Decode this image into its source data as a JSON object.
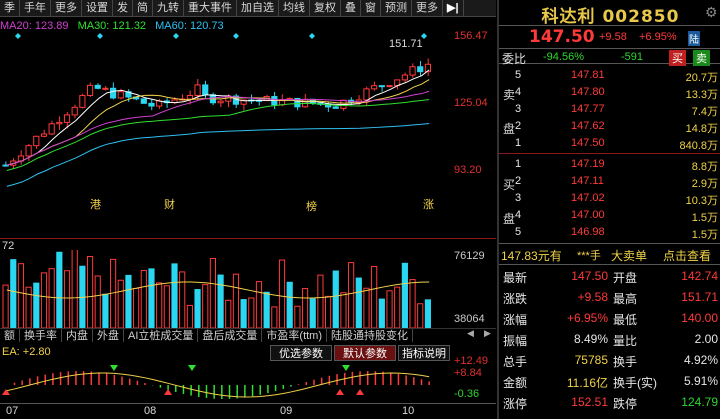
{
  "toolbar": {
    "items": [
      "季",
      "手年",
      "更多",
      "设置",
      "发",
      "简",
      "九转",
      "重大事件",
      "加自选",
      "均线",
      "复权",
      "叠",
      "窗",
      "预测",
      "更多"
    ],
    "arrow_label": "▶|"
  },
  "ma": {
    "ma20": "MA20: 123.89",
    "ma30": "MA30: 121.32",
    "ma60": "MA60: 120.73"
  },
  "price_axis": {
    "high_label": "151.71",
    "ticks": [
      "156.47",
      "125.04",
      "93.20"
    ]
  },
  "volume": {
    "label": "72",
    "ticks": [
      "76129",
      "38064"
    ]
  },
  "events": {
    "e1": "港",
    "e2": "财",
    "e3": "榜",
    "e4": "涨"
  },
  "tabs": [
    "额",
    "换手率",
    "内盘",
    "外盘",
    "AI立桩成交量",
    "盘后成交量",
    "市盈率(ttm)",
    "陆股通持股变化"
  ],
  "tab_arrow_left": "◀",
  "tab_arrow_right": "▶",
  "indicator": {
    "label": "EA: +2.80",
    "buttons": [
      "优选参数",
      "默认参数",
      "指标说明"
    ],
    "ticks": [
      "+12.49",
      "+8.84",
      "-0.36"
    ]
  },
  "x_axis": [
    "07",
    "08",
    "09",
    "10"
  ],
  "panel": {
    "title": "科达利 002850",
    "price": "147.50",
    "change": "+9.58",
    "change_pct": "+6.95%",
    "market_badge": "陆",
    "weibi_label": "委比",
    "weibi_value": "-94.56%",
    "weicha_value": "-591",
    "buy_btn": "买",
    "sell_btn": "卖",
    "sell_side_label": [
      "卖",
      "盘"
    ],
    "buy_side_label": [
      "买",
      "盘"
    ],
    "asks": [
      {
        "level": "5",
        "price": "147.81",
        "vol": "20.7万"
      },
      {
        "level": "4",
        "price": "147.80",
        "vol": "13.3万"
      },
      {
        "level": "3",
        "price": "147.77",
        "vol": "7.4万"
      },
      {
        "level": "2",
        "price": "147.62",
        "vol": "14.8万"
      },
      {
        "level": "1",
        "price": "147.50",
        "vol": "840.8万"
      }
    ],
    "bids": [
      {
        "level": "1",
        "price": "147.19",
        "vol": "8.8万"
      },
      {
        "level": "2",
        "price": "147.11",
        "vol": "2.9万"
      },
      {
        "level": "3",
        "price": "147.02",
        "vol": "10.3万"
      },
      {
        "level": "4",
        "price": "147.00",
        "vol": "1.5万"
      },
      {
        "level": "5",
        "price": "146.98",
        "vol": "1.5万"
      }
    ],
    "deal_amount": "147.83元有",
    "deal_stars": "***手",
    "big_order": "大卖单",
    "check_link": "点击查看",
    "stats": [
      {
        "l1": "最新",
        "v1": "147.50",
        "l2": "开盘",
        "v2": "142.74"
      },
      {
        "l1": "涨跌",
        "v1": "+9.58",
        "l2": "最高",
        "v2": "151.71"
      },
      {
        "l1": "涨幅",
        "v1": "+6.95%",
        "l2": "最低",
        "v2": "140.00"
      },
      {
        "l1": "振幅",
        "v1": "8.49%",
        "l2": "量比",
        "v2": "2.00"
      },
      {
        "l1": "总手",
        "v1": "75785",
        "l2": "换手",
        "v2": "4.92%"
      },
      {
        "l1": "金额",
        "v1": "11.16亿",
        "l2": "换手(实)",
        "v2": "5.91%"
      },
      {
        "l1": "涨停",
        "v1": "152.51",
        "l2": "跌停",
        "v2": "124.79"
      }
    ]
  },
  "colors": {
    "up": "#ff3a3a",
    "down": "#2ad6f0",
    "ma5": "#ffffff",
    "ma10": "#f0d24a",
    "ma20": "#d040d0",
    "ma30": "#30e030",
    "ma60": "#30c0f0"
  }
}
